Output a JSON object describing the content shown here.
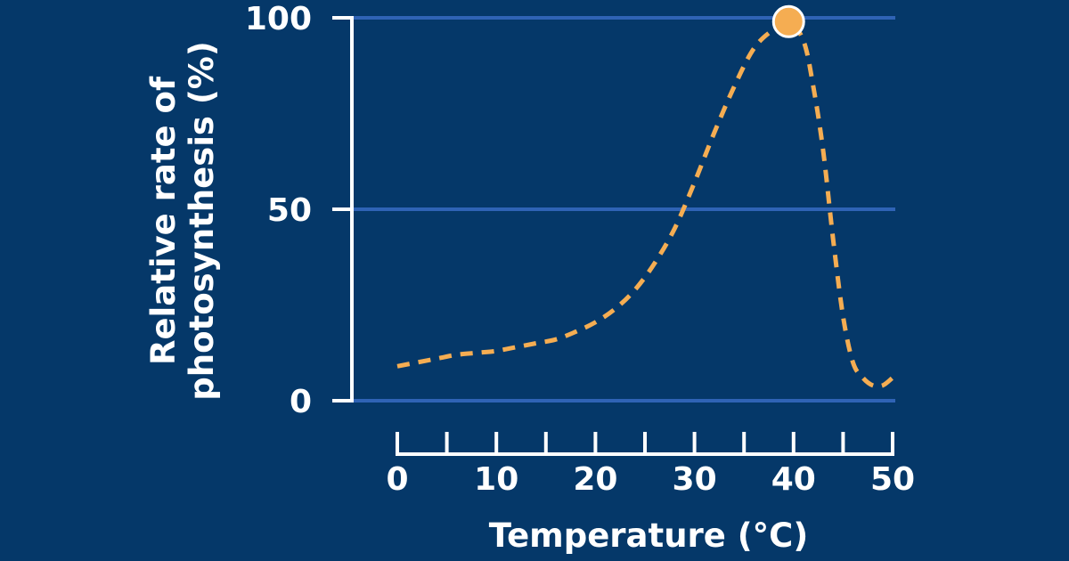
{
  "chart_data": {
    "type": "line",
    "xlabel": "Temperature (°C)",
    "ylabel_lines": [
      "Relative rate of",
      "photosynthesis (%)"
    ],
    "xlim": [
      0,
      50
    ],
    "ylim": [
      0,
      100
    ],
    "x_ticks": [
      0,
      10,
      20,
      30,
      40,
      50
    ],
    "x_minor_ticks": [
      5,
      15,
      25,
      35,
      45
    ],
    "y_ticks": [
      0,
      50,
      100
    ],
    "grid": true,
    "line_style": "dashed",
    "series": [
      {
        "x": [
          0,
          2,
          4,
          6,
          8,
          10,
          12,
          14,
          16,
          18,
          20,
          22,
          24,
          26,
          28,
          30,
          32,
          34,
          36,
          38,
          39.5,
          41,
          42,
          43,
          44,
          45,
          46,
          47,
          48,
          49,
          50
        ],
        "values": [
          9,
          10,
          11,
          12,
          12.5,
          13,
          14,
          15,
          16,
          18,
          20.5,
          24,
          29,
          36,
          45,
          57,
          70,
          82,
          92,
          97,
          99,
          94,
          82,
          65,
          42,
          22,
          10,
          6,
          4,
          4,
          6
        ]
      }
    ],
    "highlight_point": {
      "x": 39.5,
      "y": 99
    },
    "colors": {
      "background": "#053869",
      "gridline": "#2f63b5",
      "axis": "#ffffff",
      "line": "#f5ad52",
      "marker_fill": "#f5ad52",
      "marker_stroke": "#ffffff"
    }
  }
}
